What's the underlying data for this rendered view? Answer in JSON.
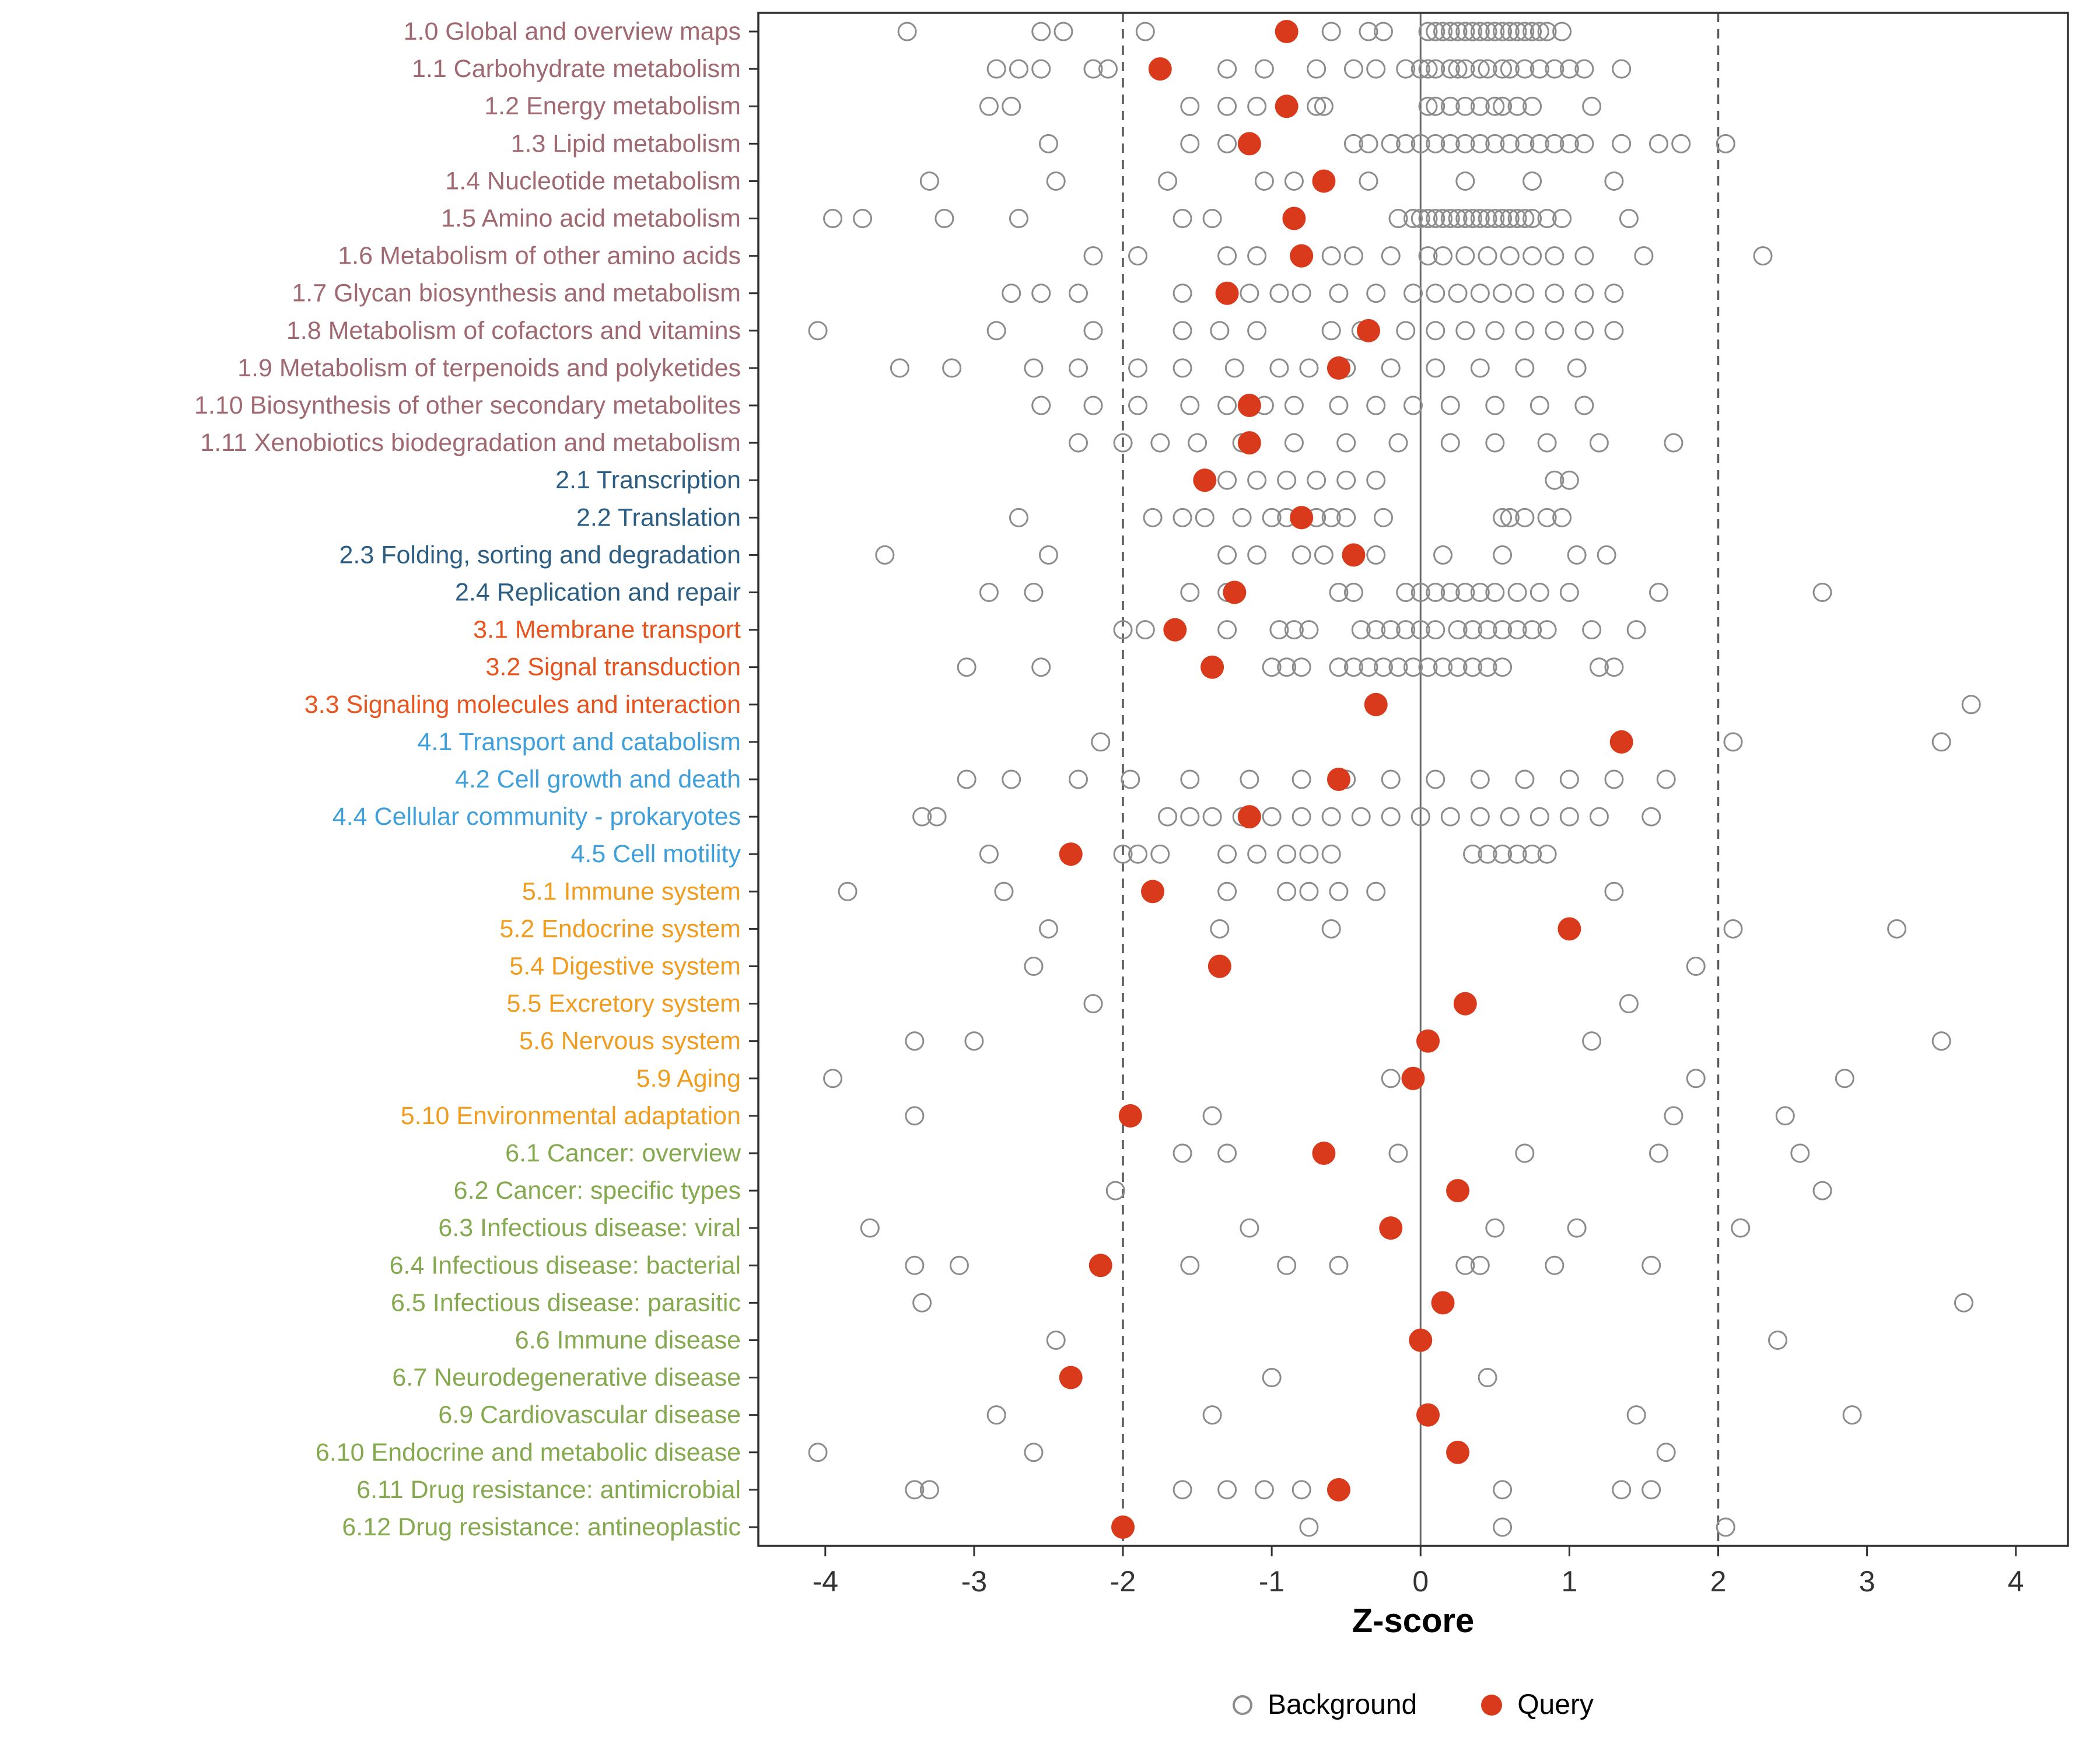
{
  "figure": {
    "xlabel": "Z-score"
  },
  "legend": {
    "items": [
      {
        "label": "Background",
        "type": "open"
      },
      {
        "label": "Query",
        "type": "filled"
      }
    ]
  },
  "chart_data": {
    "type": "scatter",
    "title": "",
    "xlabel": "Z-score",
    "ylabel": "",
    "legend_position": "bottom",
    "axis": {
      "ticks": [
        -4,
        -3,
        -2,
        -1,
        0,
        1,
        2,
        3,
        4
      ],
      "panel_range": [
        -4.45,
        4.35
      ],
      "ref_lines_dashed": [
        -2,
        2
      ],
      "ref_lines_solid": [
        0
      ],
      "grid": false
    },
    "colors": {
      "query_point": "#D93A1B",
      "background_point": "#8C8C8C",
      "ref_line_dashed": "#5A5A5A",
      "ref_line_solid": "#6B6B6B",
      "panel_border": "#2F2F2F",
      "axis_text": "#333333",
      "groups": {
        "1": "#A06971",
        "2": "#2C5D83",
        "3": "#E8541D",
        "4": "#3F9FDB",
        "5": "#F09C1F",
        "6": "#85A94E"
      }
    },
    "rows": [
      {
        "label": "1.0 Global and overview maps",
        "group": "1",
        "query": -0.9,
        "background": [
          -3.45,
          -2.55,
          -2.4,
          -1.85,
          -0.6,
          -0.35,
          -0.25,
          0.05,
          0.1,
          0.15,
          0.2,
          0.25,
          0.3,
          0.35,
          0.4,
          0.45,
          0.5,
          0.55,
          0.6,
          0.65,
          0.7,
          0.75,
          0.8,
          0.85,
          0.95
        ]
      },
      {
        "label": "1.1 Carbohydrate metabolism",
        "group": "1",
        "query": -1.75,
        "background": [
          -2.85,
          -2.7,
          -2.55,
          -2.2,
          -2.1,
          -1.3,
          -1.05,
          -0.7,
          -0.45,
          -0.3,
          -0.1,
          0.0,
          0.05,
          0.1,
          0.2,
          0.25,
          0.3,
          0.4,
          0.45,
          0.55,
          0.6,
          0.7,
          0.8,
          0.9,
          1.0,
          1.1,
          1.35
        ]
      },
      {
        "label": "1.2 Energy metabolism",
        "group": "1",
        "query": -0.9,
        "background": [
          -2.9,
          -2.75,
          -1.55,
          -1.3,
          -1.1,
          -0.7,
          -0.65,
          0.05,
          0.1,
          0.2,
          0.3,
          0.4,
          0.5,
          0.55,
          0.65,
          0.75,
          1.15
        ]
      },
      {
        "label": "1.3 Lipid metabolism",
        "group": "1",
        "query": -1.15,
        "background": [
          -2.5,
          -1.55,
          -1.3,
          -0.45,
          -0.35,
          -0.2,
          -0.1,
          0.0,
          0.1,
          0.2,
          0.3,
          0.4,
          0.5,
          0.6,
          0.7,
          0.8,
          0.9,
          1.0,
          1.1,
          1.35,
          1.6,
          1.75,
          2.05
        ]
      },
      {
        "label": "1.4 Nucleotide metabolism",
        "group": "1",
        "query": -0.65,
        "background": [
          -3.3,
          -2.45,
          -1.7,
          -1.05,
          -0.85,
          -0.35,
          0.3,
          0.75,
          1.3
        ]
      },
      {
        "label": "1.5 Amino acid metabolism",
        "group": "1",
        "query": -0.85,
        "background": [
          -3.95,
          -3.75,
          -3.2,
          -2.7,
          -1.6,
          -1.4,
          -0.85,
          -0.15,
          -0.05,
          0.0,
          0.05,
          0.1,
          0.15,
          0.2,
          0.25,
          0.3,
          0.35,
          0.4,
          0.45,
          0.5,
          0.55,
          0.6,
          0.65,
          0.7,
          0.75,
          0.85,
          0.95,
          1.4
        ]
      },
      {
        "label": "1.6 Metabolism of other amino acids",
        "group": "1",
        "query": -0.8,
        "background": [
          -2.2,
          -1.9,
          -1.3,
          -1.1,
          -0.6,
          -0.45,
          -0.2,
          0.05,
          0.15,
          0.3,
          0.45,
          0.6,
          0.75,
          0.9,
          1.1,
          1.5,
          2.3
        ]
      },
      {
        "label": "1.7 Glycan biosynthesis and metabolism",
        "group": "1",
        "query": -1.3,
        "background": [
          -2.75,
          -2.55,
          -2.3,
          -1.6,
          -1.15,
          -0.95,
          -0.8,
          -0.55,
          -0.3,
          -0.05,
          0.1,
          0.25,
          0.4,
          0.55,
          0.7,
          0.9,
          1.1,
          1.3
        ]
      },
      {
        "label": "1.8 Metabolism of cofactors and vitamins",
        "group": "1",
        "query": -0.35,
        "background": [
          -4.05,
          -2.85,
          -2.2,
          -1.6,
          -1.35,
          -1.1,
          -0.6,
          -0.4,
          -0.1,
          0.1,
          0.3,
          0.5,
          0.7,
          0.9,
          1.1,
          1.3
        ]
      },
      {
        "label": "1.9 Metabolism of terpenoids and polyketides",
        "group": "1",
        "query": -0.55,
        "background": [
          -3.5,
          -3.15,
          -2.6,
          -2.3,
          -1.9,
          -1.6,
          -1.25,
          -0.95,
          -0.75,
          -0.5,
          -0.2,
          0.1,
          0.4,
          0.7,
          1.05
        ]
      },
      {
        "label": "1.10 Biosynthesis of other secondary metabolites",
        "group": "1",
        "query": -1.15,
        "background": [
          -2.55,
          -2.2,
          -1.9,
          -1.55,
          -1.3,
          -1.05,
          -0.85,
          -0.55,
          -0.3,
          -0.05,
          0.2,
          0.5,
          0.8,
          1.1
        ]
      },
      {
        "label": "1.11 Xenobiotics biodegradation and metabolism",
        "group": "1",
        "query": -1.15,
        "background": [
          -2.3,
          -2.0,
          -1.75,
          -1.5,
          -1.2,
          -0.85,
          -0.5,
          -0.15,
          0.2,
          0.5,
          0.85,
          1.2,
          1.7
        ]
      },
      {
        "label": "2.1 Transcription",
        "group": "2",
        "query": -1.45,
        "background": [
          -1.3,
          -1.1,
          -0.9,
          -0.7,
          -0.5,
          -0.3,
          0.9,
          1.0
        ]
      },
      {
        "label": "2.2 Translation",
        "group": "2",
        "query": -0.8,
        "background": [
          -2.7,
          -1.8,
          -1.6,
          -1.45,
          -1.2,
          -1.0,
          -0.9,
          -0.8,
          -0.7,
          -0.6,
          -0.5,
          -0.25,
          0.55,
          0.6,
          0.7,
          0.85,
          0.95
        ]
      },
      {
        "label": "2.3 Folding, sorting and degradation",
        "group": "2",
        "query": -0.45,
        "background": [
          -3.6,
          -2.5,
          -1.3,
          -1.1,
          -0.8,
          -0.65,
          -0.45,
          -0.3,
          0.15,
          0.55,
          1.05,
          1.25
        ]
      },
      {
        "label": "2.4 Replication and repair",
        "group": "2",
        "query": -1.25,
        "background": [
          -2.9,
          -2.6,
          -1.55,
          -1.3,
          -0.55,
          -0.45,
          -0.1,
          0.0,
          0.1,
          0.2,
          0.3,
          0.4,
          0.5,
          0.65,
          0.8,
          1.0,
          1.6,
          2.7
        ]
      },
      {
        "label": "3.1 Membrane transport",
        "group": "3",
        "query": -1.65,
        "background": [
          -2.0,
          -1.85,
          -1.3,
          -0.95,
          -0.85,
          -0.75,
          -0.4,
          -0.3,
          -0.2,
          -0.1,
          0.0,
          0.1,
          0.25,
          0.35,
          0.45,
          0.55,
          0.65,
          0.75,
          0.85,
          1.15,
          1.45
        ]
      },
      {
        "label": "3.2 Signal transduction",
        "group": "3",
        "query": -1.4,
        "background": [
          -3.05,
          -2.55,
          -1.0,
          -0.9,
          -0.8,
          -0.55,
          -0.45,
          -0.35,
          -0.25,
          -0.15,
          -0.05,
          0.05,
          0.15,
          0.25,
          0.35,
          0.45,
          0.55,
          1.2,
          1.3
        ]
      },
      {
        "label": "3.3 Signaling molecules and interaction",
        "group": "3",
        "query": -0.3,
        "background": [
          3.7
        ]
      },
      {
        "label": "4.1 Transport and catabolism",
        "group": "4",
        "query": 1.35,
        "background": [
          -2.15,
          2.1,
          3.5
        ]
      },
      {
        "label": "4.2 Cell growth and death",
        "group": "4",
        "query": -0.55,
        "background": [
          -3.05,
          -2.75,
          -2.3,
          -1.95,
          -1.55,
          -1.15,
          -0.8,
          -0.5,
          -0.2,
          0.1,
          0.4,
          0.7,
          1.0,
          1.3,
          1.65
        ]
      },
      {
        "label": "4.4 Cellular community - prokaryotes",
        "group": "4",
        "query": -1.15,
        "background": [
          -3.35,
          -3.25,
          -1.7,
          -1.55,
          -1.4,
          -1.2,
          -1.0,
          -0.8,
          -0.6,
          -0.4,
          -0.2,
          0.0,
          0.2,
          0.4,
          0.6,
          0.8,
          1.0,
          1.2,
          1.55
        ]
      },
      {
        "label": "4.5 Cell motility",
        "group": "4",
        "query": -2.35,
        "background": [
          -2.9,
          -2.0,
          -1.9,
          -1.75,
          -1.3,
          -1.1,
          -0.9,
          -0.75,
          -0.6,
          0.35,
          0.45,
          0.55,
          0.65,
          0.75,
          0.85
        ]
      },
      {
        "label": "5.1 Immune system",
        "group": "5",
        "query": -1.8,
        "background": [
          -3.85,
          -2.8,
          -1.3,
          -0.9,
          -0.75,
          -0.55,
          -0.3,
          1.3
        ]
      },
      {
        "label": "5.2 Endocrine system",
        "group": "5",
        "query": 1.0,
        "background": [
          -2.5,
          -1.35,
          -0.6,
          2.1,
          3.2
        ]
      },
      {
        "label": "5.4 Digestive system",
        "group": "5",
        "query": -1.35,
        "background": [
          -2.6,
          1.85
        ]
      },
      {
        "label": "5.5 Excretory system",
        "group": "5",
        "query": 0.3,
        "background": [
          -2.2,
          1.4
        ]
      },
      {
        "label": "5.6 Nervous system",
        "group": "5",
        "query": 0.05,
        "background": [
          -3.4,
          -3.0,
          1.15,
          3.5
        ]
      },
      {
        "label": "5.9 Aging",
        "group": "5",
        "query": -0.05,
        "background": [
          -3.95,
          -0.2,
          1.85,
          2.85
        ]
      },
      {
        "label": "5.10 Environmental adaptation",
        "group": "5",
        "query": -1.95,
        "background": [
          -3.4,
          -1.4,
          1.7,
          2.45
        ]
      },
      {
        "label": "6.1 Cancer: overview",
        "group": "6",
        "query": -0.65,
        "background": [
          -1.6,
          -1.3,
          -0.15,
          0.7,
          1.6,
          2.55
        ]
      },
      {
        "label": "6.2 Cancer: specific types",
        "group": "6",
        "query": 0.25,
        "background": [
          -2.05,
          2.7
        ]
      },
      {
        "label": "6.3 Infectious disease: viral",
        "group": "6",
        "query": -0.2,
        "background": [
          -3.7,
          -1.15,
          0.5,
          1.05,
          2.15
        ]
      },
      {
        "label": "6.4 Infectious disease: bacterial",
        "group": "6",
        "query": -2.15,
        "background": [
          -3.4,
          -3.1,
          -1.55,
          -0.9,
          -0.55,
          0.3,
          0.4,
          0.9,
          1.55
        ]
      },
      {
        "label": "6.5 Infectious disease: parasitic",
        "group": "6",
        "query": 0.15,
        "background": [
          -3.35,
          3.65
        ]
      },
      {
        "label": "6.6 Immune disease",
        "group": "6",
        "query": 0.0,
        "background": [
          -2.45,
          2.4
        ]
      },
      {
        "label": "6.7 Neurodegenerative disease",
        "group": "6",
        "query": -2.35,
        "background": [
          -1.0,
          0.45
        ]
      },
      {
        "label": "6.9 Cardiovascular disease",
        "group": "6",
        "query": 0.05,
        "background": [
          -2.85,
          -1.4,
          1.45,
          2.9
        ]
      },
      {
        "label": "6.10 Endocrine and metabolic disease",
        "group": "6",
        "query": 0.25,
        "background": [
          -4.05,
          -2.6,
          1.65
        ]
      },
      {
        "label": "6.11 Drug resistance: antimicrobial",
        "group": "6",
        "query": -0.55,
        "background": [
          -3.4,
          -3.3,
          -1.6,
          -1.3,
          -1.05,
          -0.8,
          0.55,
          1.35,
          1.55
        ]
      },
      {
        "label": "6.12 Drug resistance: antineoplastic",
        "group": "6",
        "query": -2.0,
        "background": [
          -0.75,
          0.55,
          2.05
        ]
      }
    ]
  }
}
